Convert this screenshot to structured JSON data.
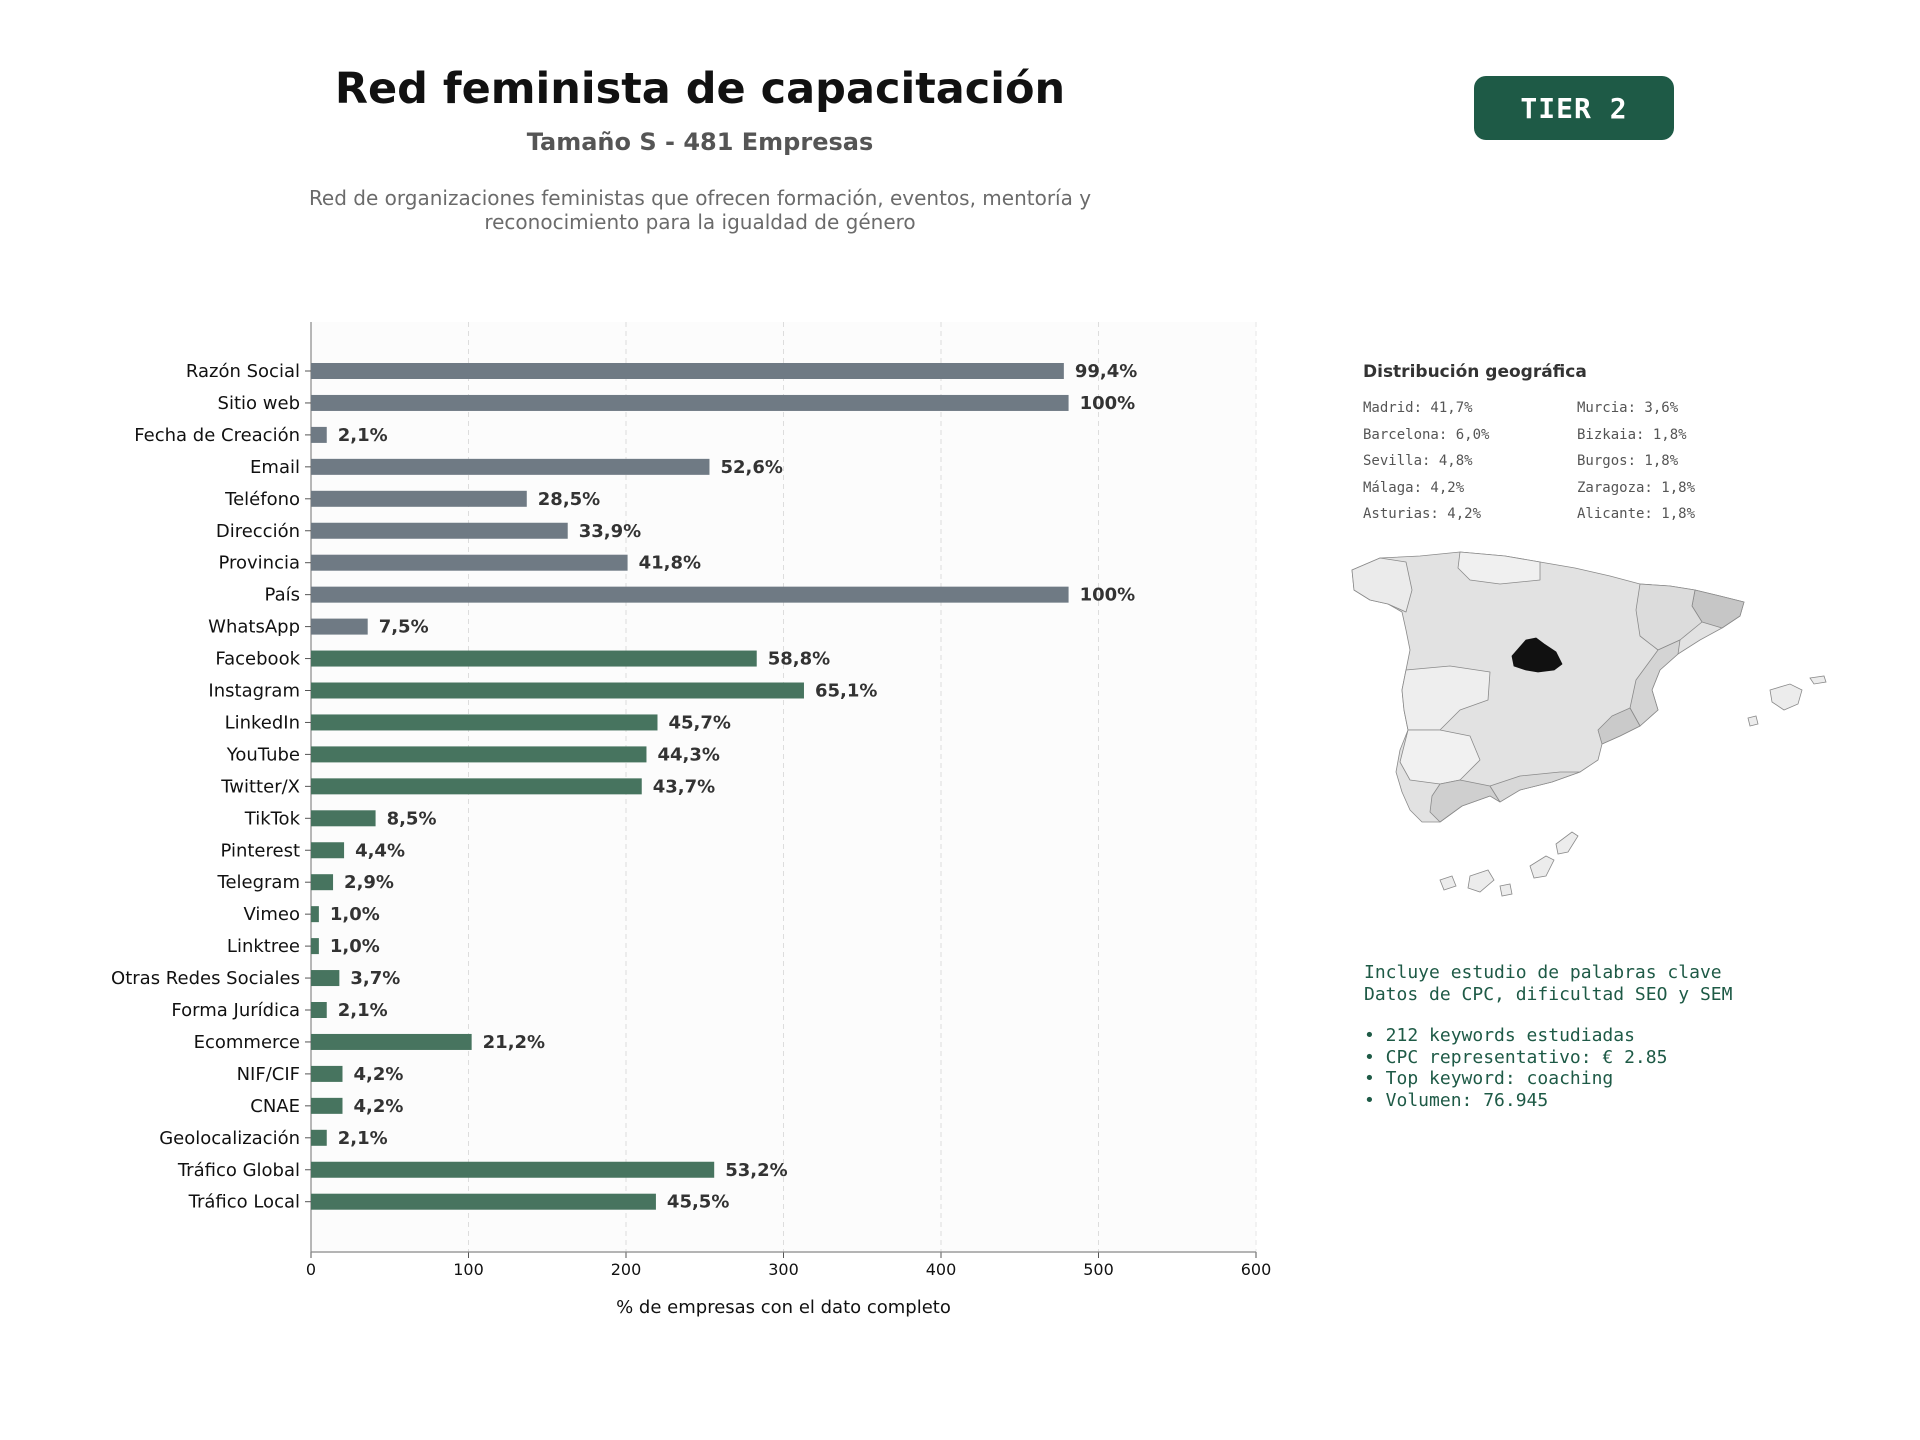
{
  "header": {
    "title": "Red feminista de capacitación",
    "subtitle": "Tamaño S - 481 Empresas",
    "description": "Red de organizaciones feministas que ofrecen formación, eventos, mentoría y reconocimiento para la igualdad de género",
    "tier": "TIER 2"
  },
  "colors": {
    "basic_bar": "#6f7a84",
    "digital_bar": "#47745f",
    "accent": "#1e5a46",
    "plot_background": "#fcfcfc"
  },
  "chart_data": {
    "type": "bar",
    "orientation": "horizontal",
    "xlabel": "% de empresas con el dato completo",
    "xlim": [
      0,
      600
    ],
    "xticks": [
      0,
      100,
      200,
      300,
      400,
      500,
      600
    ],
    "grid": "vertical dashed",
    "categories": [
      "Razón Social",
      "Sitio web",
      "Fecha de Creación",
      "Email",
      "Teléfono",
      "Dirección",
      "Provincia",
      "País",
      "WhatsApp",
      "Facebook",
      "Instagram",
      "LinkedIn",
      "YouTube",
      "Twitter/X",
      "TikTok",
      "Pinterest",
      "Telegram",
      "Vimeo",
      "Linktree",
      "Otras Redes Sociales",
      "Forma Jurídica",
      "Ecommerce",
      "NIF/CIF",
      "CNAE",
      "Geolocalización",
      "Tráfico Global",
      "Tráfico Local"
    ],
    "values": [
      478,
      481,
      10,
      253,
      137,
      163,
      201,
      481,
      36,
      283,
      313,
      220,
      213,
      210,
      41,
      21,
      14,
      5,
      5,
      18,
      10,
      102,
      20,
      20,
      10,
      256,
      219
    ],
    "labels": [
      "99,4%",
      "100%",
      "2,1%",
      "52,6%",
      "28,5%",
      "33,9%",
      "41,8%",
      "100%",
      "7,5%",
      "58,8%",
      "65,1%",
      "45,7%",
      "44,3%",
      "43,7%",
      "8,5%",
      "4,4%",
      "2,9%",
      "1,0%",
      "1,0%",
      "3,7%",
      "2,1%",
      "21,2%",
      "4,2%",
      "4,2%",
      "2,1%",
      "53,2%",
      "45,5%"
    ],
    "groups": [
      "basic",
      "basic",
      "basic",
      "basic",
      "basic",
      "basic",
      "basic",
      "basic",
      "basic",
      "digital",
      "digital",
      "digital",
      "digital",
      "digital",
      "digital",
      "digital",
      "digital",
      "digital",
      "digital",
      "digital",
      "digital",
      "digital",
      "digital",
      "digital",
      "digital",
      "digital",
      "digital"
    ]
  },
  "geo": {
    "title": "Distribución geográfica",
    "items": [
      "Madrid: 41,7%",
      "Murcia: 3,6%",
      "Barcelona: 6,0%",
      "Bizkaia: 1,8%",
      "Sevilla: 4,8%",
      "Burgos: 1,8%",
      "Málaga: 4,2%",
      "Zaragoza: 1,8%",
      "Asturias: 4,2%",
      "Alicante: 1,8%"
    ]
  },
  "keywords": {
    "line1": "Incluye estudio de palabras clave",
    "line2": "Datos de CPC, dificultad SEO y SEM",
    "bullet1": "• 212 keywords estudiadas",
    "bullet2": "• CPC representativo: € 2.85",
    "bullet3": "• Top keyword: coaching",
    "bullet4": "• Volumen: 76.945"
  }
}
